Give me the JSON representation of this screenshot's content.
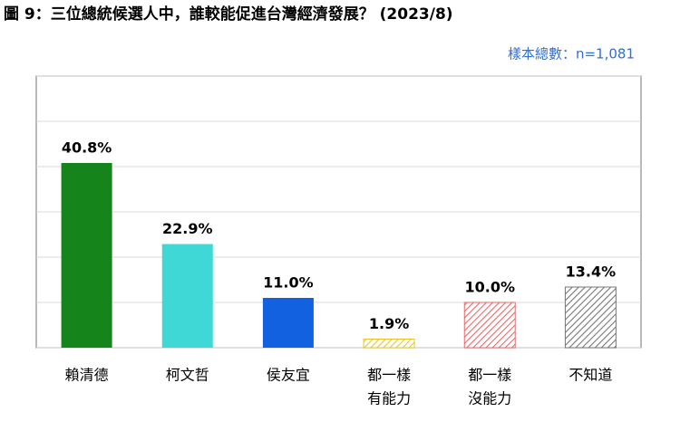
{
  "chart_data": {
    "type": "bar",
    "title": "圖 9：三位總統候選人中，誰較能促進台灣經濟發展？ (2023/8)",
    "subtitle": "樣本總數：n=1,081",
    "categories": [
      "賴清德",
      "柯文哲",
      "侯友宜",
      [
        "都一樣",
        "有能力"
      ],
      [
        "都一樣",
        "沒能力"
      ],
      "不知道"
    ],
    "values": [
      40.8,
      22.9,
      11.0,
      1.9,
      10.0,
      13.4
    ],
    "value_labels": [
      "40.8%",
      "22.9%",
      "11.0%",
      "1.9%",
      "10.0%",
      "13.4%"
    ],
    "colors": [
      "#15841a",
      "#3fd8d6",
      "#1261e0",
      "#e9c52c",
      "#e66a6a",
      "#777777"
    ],
    "hatched": [
      false,
      false,
      false,
      true,
      true,
      true
    ],
    "ylim": [
      0,
      60
    ],
    "yticks": [
      0,
      10,
      20,
      30,
      40,
      50,
      60
    ],
    "grid": true
  }
}
